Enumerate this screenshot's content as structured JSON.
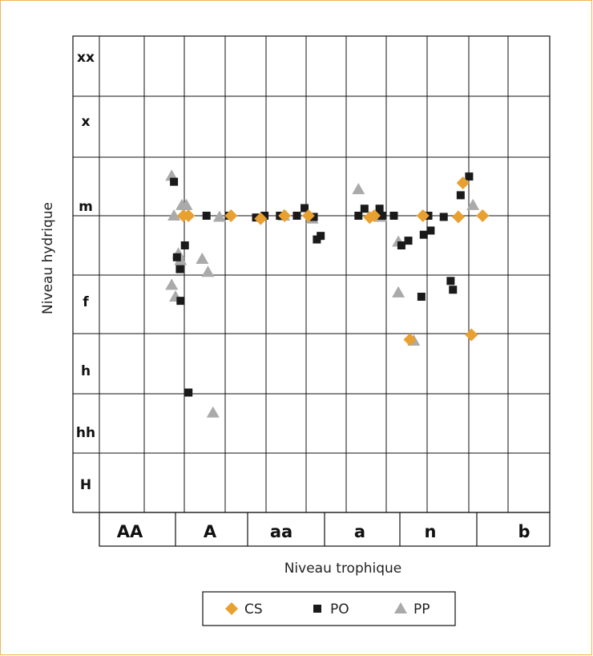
{
  "chart_data": {
    "type": "scatter",
    "title": "",
    "xlabel": "Niveau trophique",
    "ylabel": "Niveau hydrique",
    "x_categories": [
      "AA",
      "A",
      "aa",
      "a",
      "n",
      "b"
    ],
    "y_categories": [
      "xx",
      "x",
      "m",
      "f",
      "h",
      "hh",
      "H"
    ],
    "x_range": [
      0,
      6
    ],
    "y_range": [
      0,
      8
    ],
    "note_units": "x: trophic level scale (AA=0..1, A=1..2, aa=2..3, a=3..4, n=4..5, b=5..6); y: hydric level scale (0=H bottom .. 7=xx top; 5.0 = mid-m line)",
    "legend_position": "bottom",
    "grid": true,
    "series": [
      {
        "name": "CS",
        "marker": "diamond",
        "color": "#e8a030",
        "points": [
          [
            1.11,
            5.0
          ],
          [
            1.18,
            5.0
          ],
          [
            1.77,
            5.0
          ],
          [
            2.17,
            4.95
          ],
          [
            2.48,
            5.0
          ],
          [
            2.79,
            5.0
          ],
          [
            3.6,
            4.97
          ],
          [
            3.66,
            5.0
          ],
          [
            4.13,
            2.9
          ],
          [
            4.3,
            5.0
          ],
          [
            4.76,
            4.98
          ],
          [
            4.82,
            5.56
          ],
          [
            4.93,
            2.98
          ],
          [
            5.08,
            5.0
          ]
        ]
      },
      {
        "name": "PO",
        "marker": "square",
        "color": "#1a1a1a",
        "points": [
          [
            0.98,
            5.58
          ],
          [
            1.02,
            4.3
          ],
          [
            1.06,
            4.1
          ],
          [
            1.07,
            3.56
          ],
          [
            1.13,
            4.5
          ],
          [
            1.18,
            2.02
          ],
          [
            1.43,
            5.0
          ],
          [
            1.75,
            5.0
          ],
          [
            2.11,
            4.97
          ],
          [
            2.22,
            5.0
          ],
          [
            2.42,
            5.0
          ],
          [
            2.64,
            5.0
          ],
          [
            2.74,
            5.13
          ],
          [
            2.86,
            4.98
          ],
          [
            2.9,
            4.6
          ],
          [
            2.95,
            4.66
          ],
          [
            3.45,
            5.0
          ],
          [
            3.53,
            5.12
          ],
          [
            3.73,
            5.12
          ],
          [
            3.76,
            5.0
          ],
          [
            3.92,
            5.0
          ],
          [
            4.02,
            4.5
          ],
          [
            4.11,
            4.58
          ],
          [
            4.28,
            3.63
          ],
          [
            4.31,
            4.68
          ],
          [
            4.37,
            5.0
          ],
          [
            4.4,
            4.75
          ],
          [
            4.57,
            4.98
          ],
          [
            4.66,
            3.9
          ],
          [
            4.69,
            3.75
          ],
          [
            4.79,
            5.35
          ],
          [
            4.9,
            5.67
          ]
        ]
      },
      {
        "name": "PP",
        "marker": "triangle",
        "color": "#aaaaaa",
        "points": [
          [
            0.95,
            5.68
          ],
          [
            0.95,
            3.83
          ],
          [
            0.98,
            5.0
          ],
          [
            1.0,
            3.63
          ],
          [
            1.04,
            4.36
          ],
          [
            1.07,
            4.25
          ],
          [
            1.09,
            5.18
          ],
          [
            1.15,
            5.18
          ],
          [
            1.37,
            4.27
          ],
          [
            1.45,
            4.05
          ],
          [
            1.52,
            1.68
          ],
          [
            1.61,
            4.98
          ],
          [
            2.47,
            5.0
          ],
          [
            2.84,
            4.95
          ],
          [
            3.45,
            5.45
          ],
          [
            3.75,
            4.98
          ],
          [
            3.98,
            4.56
          ],
          [
            3.98,
            3.7
          ],
          [
            4.18,
            2.88
          ],
          [
            4.95,
            5.18
          ]
        ]
      }
    ]
  },
  "legend": {
    "items": [
      "CS",
      "PO",
      "PP"
    ]
  }
}
